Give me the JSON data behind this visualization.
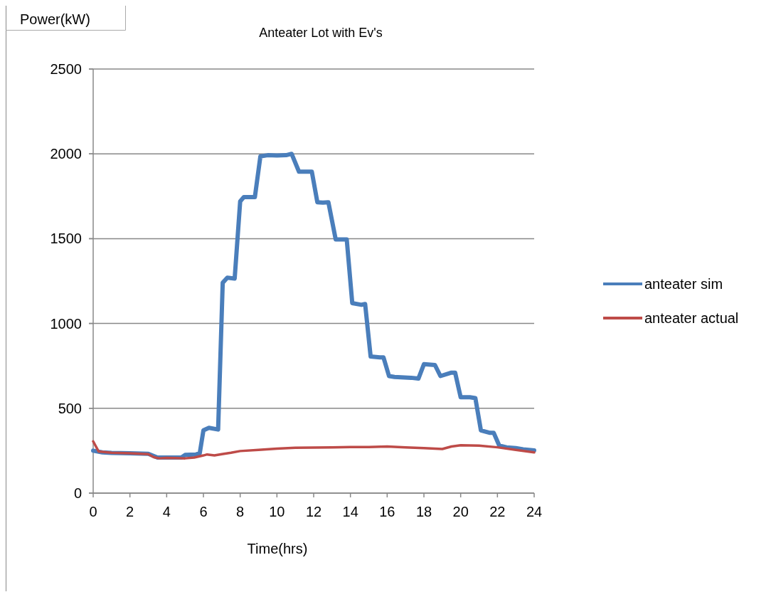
{
  "chart_data": {
    "type": "line",
    "title": "Anteater Lot with Ev's",
    "xlabel": "Time(hrs)",
    "ylabel": "Power(kW)",
    "xlim": [
      0,
      24
    ],
    "xticks": [
      0,
      2,
      4,
      6,
      8,
      10,
      12,
      14,
      16,
      18,
      20,
      22,
      24
    ],
    "ylim": [
      0,
      2500
    ],
    "yticks": [
      0,
      500,
      1000,
      1500,
      2000,
      2500
    ],
    "grid": "y",
    "legend": "right",
    "line_style": "solid",
    "marker": "none",
    "series": [
      {
        "name": "anteater sim",
        "color": "#4a7ebb",
        "x": [
          0,
          0.5,
          1,
          2,
          3,
          3.5,
          4,
          4.8,
          5,
          5.6,
          5.8,
          6,
          6.3,
          6.8,
          7.05,
          7.3,
          7.7,
          8,
          8.2,
          8.8,
          9.1,
          9.5,
          10,
          10.5,
          10.8,
          11.2,
          11.9,
          12.2,
          12.5,
          12.8,
          13.2,
          13.8,
          14.1,
          14.6,
          14.8,
          15.1,
          15.6,
          15.8,
          16.1,
          16.4,
          17.3,
          17.7,
          18,
          18.6,
          18.9,
          19.5,
          19.7,
          20,
          20.5,
          20.8,
          21.1,
          21.6,
          21.8,
          22.1,
          22.5,
          23,
          23.4,
          24
        ],
        "values": [
          250,
          240,
          237,
          235,
          232,
          210,
          210,
          210,
          225,
          228,
          235,
          370,
          385,
          375,
          1240,
          1270,
          1265,
          1720,
          1745,
          1745,
          1985,
          1992,
          1990,
          1992,
          2000,
          1895,
          1895,
          1715,
          1712,
          1715,
          1495,
          1495,
          1120,
          1110,
          1115,
          805,
          800,
          800,
          690,
          685,
          680,
          675,
          760,
          755,
          690,
          710,
          710,
          565,
          565,
          560,
          370,
          355,
          355,
          280,
          270,
          265,
          258,
          252
        ]
      },
      {
        "name": "anteater actual",
        "color": "#be4b48",
        "x": [
          0,
          0.3,
          1,
          2,
          3,
          3.3,
          3.6,
          4,
          5,
          5.5,
          6,
          6.2,
          6.6,
          7,
          7.5,
          8,
          9,
          10,
          11,
          12,
          13,
          14,
          15,
          16,
          17,
          18,
          19,
          19.5,
          20,
          21,
          22,
          23,
          24
        ],
        "values": [
          305,
          245,
          238,
          235,
          230,
          212,
          205,
          208,
          205,
          210,
          222,
          228,
          222,
          230,
          238,
          248,
          255,
          262,
          267,
          268,
          270,
          272,
          272,
          275,
          270,
          265,
          260,
          275,
          282,
          280,
          270,
          255,
          240
        ]
      }
    ]
  }
}
